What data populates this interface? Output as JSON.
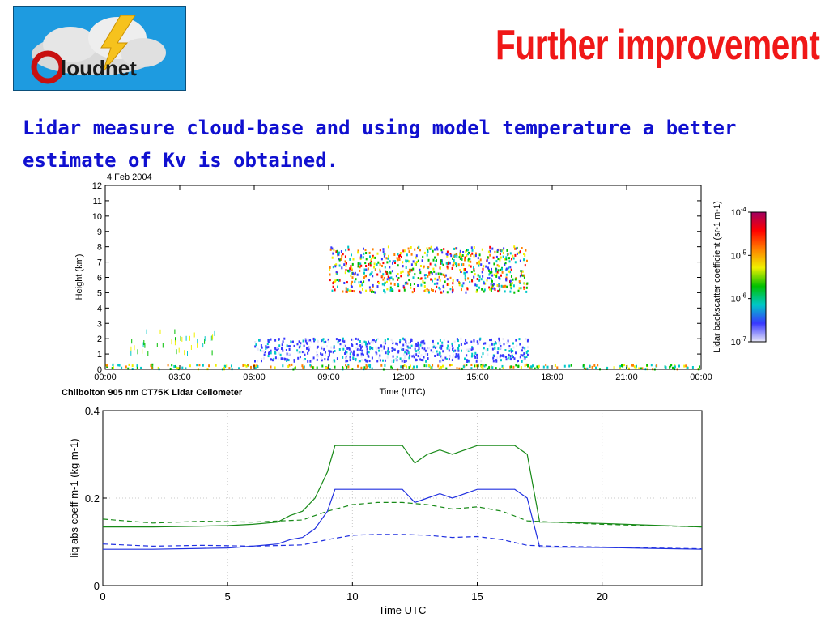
{
  "slide": {
    "title": "Further improvement",
    "subtitle": "Lidar measure cloud-base and using model temperature a better estimate of Kv is obtained.",
    "logo_text": "Cloudnet",
    "colors": {
      "title": "#f01818",
      "subtitle": "#1010d0",
      "logo_bg": "#1e9be0"
    }
  },
  "chart_data": [
    {
      "type": "heatmap",
      "title": "4 Feb 2004",
      "xlabel": "Time (UTC)",
      "ylabel": "Height (km)",
      "caption": "Chilbolton 905 nm CT75K Lidar Ceilometer",
      "x_ticks": [
        "00:00",
        "03:00",
        "06:00",
        "09:00",
        "12:00",
        "15:00",
        "18:00",
        "21:00",
        "00:00"
      ],
      "xlim": [
        0,
        24
      ],
      "ylim": [
        0,
        12
      ],
      "y_ticks": [
        0,
        1,
        2,
        3,
        4,
        5,
        6,
        7,
        8,
        9,
        10,
        11,
        12
      ],
      "colorbar": {
        "label": "Lidar backscatter coefficient (sr-1 m-1)",
        "scale": "log",
        "ticks": [
          "10-7",
          "10-6",
          "10-5",
          "10-4"
        ],
        "range": [
          1e-07,
          0.0001
        ],
        "colormap": [
          "#e8e8f8",
          "#3838ff",
          "#00c8c8",
          "#00c000",
          "#f0f000",
          "#ff8000",
          "#ff0000",
          "#a00060"
        ]
      },
      "features": [
        {
          "name": "surface aerosol layer",
          "x_range": [
            0,
            24
          ],
          "height_km": [
            0,
            0.3
          ]
        },
        {
          "name": "scattered low returns",
          "x_range": [
            1,
            4.5
          ],
          "height_km": [
            1,
            2.5
          ]
        },
        {
          "name": "mid-level cloud",
          "x_range": [
            9,
            17
          ],
          "height_km": [
            5,
            8
          ]
        },
        {
          "name": "low cloud",
          "x_range": [
            6,
            17
          ],
          "height_km": [
            0.5,
            2
          ]
        }
      ]
    },
    {
      "type": "line",
      "xlabel": "Time UTC",
      "ylabel": "liq abs coeff  m-1 (kg m-1)",
      "xlim": [
        0,
        24
      ],
      "ylim": [
        0,
        0.4
      ],
      "x_ticks": [
        0,
        5,
        10,
        15,
        20
      ],
      "y_ticks": [
        0,
        0.2,
        0.4
      ],
      "y_tick_labels": [
        "0",
        "0.2",
        "0.4"
      ],
      "grid": true,
      "series": [
        {
          "color": "#188a18",
          "style": "solid",
          "x": [
            0,
            2,
            4,
            5,
            6,
            7,
            7.5,
            8,
            8.5,
            9,
            9.3,
            10,
            11,
            12,
            12.5,
            13,
            13.5,
            14,
            15,
            16,
            16.5,
            17,
            17.5,
            18,
            20,
            22,
            24
          ],
          "y": [
            0.134,
            0.134,
            0.136,
            0.137,
            0.14,
            0.145,
            0.16,
            0.17,
            0.2,
            0.26,
            0.32,
            0.32,
            0.32,
            0.32,
            0.28,
            0.3,
            0.31,
            0.3,
            0.32,
            0.32,
            0.32,
            0.3,
            0.145,
            0.145,
            0.142,
            0.138,
            0.134
          ]
        },
        {
          "color": "#2030e0",
          "style": "solid",
          "x": [
            0,
            2,
            4,
            5,
            6,
            7,
            7.5,
            8,
            8.5,
            9,
            9.3,
            10,
            11,
            12,
            12.5,
            13,
            13.5,
            14,
            15,
            16,
            16.5,
            17,
            17.5,
            18,
            20,
            22,
            24
          ],
          "y": [
            0.083,
            0.083,
            0.085,
            0.086,
            0.09,
            0.095,
            0.105,
            0.11,
            0.13,
            0.17,
            0.22,
            0.22,
            0.22,
            0.22,
            0.19,
            0.2,
            0.21,
            0.2,
            0.22,
            0.22,
            0.22,
            0.2,
            0.088,
            0.088,
            0.087,
            0.085,
            0.083
          ]
        },
        {
          "color": "#188a18",
          "style": "dashed",
          "x": [
            0,
            2,
            4,
            6,
            8,
            9,
            10,
            11,
            12,
            13,
            14,
            15,
            16,
            17,
            18,
            20,
            22,
            24
          ],
          "y": [
            0.152,
            0.143,
            0.147,
            0.145,
            0.15,
            0.17,
            0.185,
            0.19,
            0.19,
            0.185,
            0.175,
            0.18,
            0.17,
            0.148,
            0.145,
            0.14,
            0.137,
            0.134
          ]
        },
        {
          "color": "#2030e0",
          "style": "dashed",
          "x": [
            0,
            2,
            4,
            6,
            8,
            9,
            10,
            11,
            12,
            13,
            14,
            15,
            16,
            17,
            18,
            20,
            22,
            24
          ],
          "y": [
            0.095,
            0.09,
            0.092,
            0.09,
            0.093,
            0.105,
            0.115,
            0.117,
            0.117,
            0.115,
            0.11,
            0.112,
            0.105,
            0.092,
            0.09,
            0.088,
            0.086,
            0.084
          ]
        }
      ]
    }
  ]
}
